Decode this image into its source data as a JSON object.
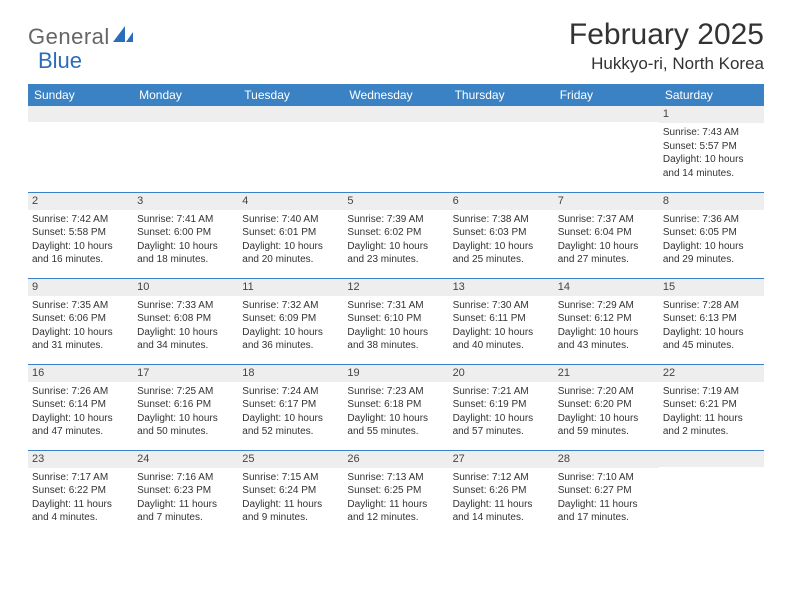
{
  "brand": {
    "text1": "General",
    "text2": "Blue"
  },
  "title": "February 2025",
  "location": "Hukkyo-ri, North Korea",
  "colors": {
    "header_bg": "#3a82c4",
    "header_fg": "#ffffff",
    "daynum_bg": "#eeeeee",
    "row_border": "#3a82c4",
    "brand_blue": "#2a6db8",
    "text": "#333333"
  },
  "fonts": {
    "title_pt": 30,
    "location_pt": 17,
    "header_pt": 12,
    "body_pt": 10
  },
  "layout": {
    "cols": 7,
    "rows": 5
  },
  "weekdays": [
    "Sunday",
    "Monday",
    "Tuesday",
    "Wednesday",
    "Thursday",
    "Friday",
    "Saturday"
  ],
  "days": [
    {
      "n": "",
      "sunrise": "",
      "sunset": "",
      "dl1": "",
      "dl2": ""
    },
    {
      "n": "",
      "sunrise": "",
      "sunset": "",
      "dl1": "",
      "dl2": ""
    },
    {
      "n": "",
      "sunrise": "",
      "sunset": "",
      "dl1": "",
      "dl2": ""
    },
    {
      "n": "",
      "sunrise": "",
      "sunset": "",
      "dl1": "",
      "dl2": ""
    },
    {
      "n": "",
      "sunrise": "",
      "sunset": "",
      "dl1": "",
      "dl2": ""
    },
    {
      "n": "",
      "sunrise": "",
      "sunset": "",
      "dl1": "",
      "dl2": ""
    },
    {
      "n": "1",
      "sunrise": "Sunrise: 7:43 AM",
      "sunset": "Sunset: 5:57 PM",
      "dl1": "Daylight: 10 hours",
      "dl2": "and 14 minutes."
    },
    {
      "n": "2",
      "sunrise": "Sunrise: 7:42 AM",
      "sunset": "Sunset: 5:58 PM",
      "dl1": "Daylight: 10 hours",
      "dl2": "and 16 minutes."
    },
    {
      "n": "3",
      "sunrise": "Sunrise: 7:41 AM",
      "sunset": "Sunset: 6:00 PM",
      "dl1": "Daylight: 10 hours",
      "dl2": "and 18 minutes."
    },
    {
      "n": "4",
      "sunrise": "Sunrise: 7:40 AM",
      "sunset": "Sunset: 6:01 PM",
      "dl1": "Daylight: 10 hours",
      "dl2": "and 20 minutes."
    },
    {
      "n": "5",
      "sunrise": "Sunrise: 7:39 AM",
      "sunset": "Sunset: 6:02 PM",
      "dl1": "Daylight: 10 hours",
      "dl2": "and 23 minutes."
    },
    {
      "n": "6",
      "sunrise": "Sunrise: 7:38 AM",
      "sunset": "Sunset: 6:03 PM",
      "dl1": "Daylight: 10 hours",
      "dl2": "and 25 minutes."
    },
    {
      "n": "7",
      "sunrise": "Sunrise: 7:37 AM",
      "sunset": "Sunset: 6:04 PM",
      "dl1": "Daylight: 10 hours",
      "dl2": "and 27 minutes."
    },
    {
      "n": "8",
      "sunrise": "Sunrise: 7:36 AM",
      "sunset": "Sunset: 6:05 PM",
      "dl1": "Daylight: 10 hours",
      "dl2": "and 29 minutes."
    },
    {
      "n": "9",
      "sunrise": "Sunrise: 7:35 AM",
      "sunset": "Sunset: 6:06 PM",
      "dl1": "Daylight: 10 hours",
      "dl2": "and 31 minutes."
    },
    {
      "n": "10",
      "sunrise": "Sunrise: 7:33 AM",
      "sunset": "Sunset: 6:08 PM",
      "dl1": "Daylight: 10 hours",
      "dl2": "and 34 minutes."
    },
    {
      "n": "11",
      "sunrise": "Sunrise: 7:32 AM",
      "sunset": "Sunset: 6:09 PM",
      "dl1": "Daylight: 10 hours",
      "dl2": "and 36 minutes."
    },
    {
      "n": "12",
      "sunrise": "Sunrise: 7:31 AM",
      "sunset": "Sunset: 6:10 PM",
      "dl1": "Daylight: 10 hours",
      "dl2": "and 38 minutes."
    },
    {
      "n": "13",
      "sunrise": "Sunrise: 7:30 AM",
      "sunset": "Sunset: 6:11 PM",
      "dl1": "Daylight: 10 hours",
      "dl2": "and 40 minutes."
    },
    {
      "n": "14",
      "sunrise": "Sunrise: 7:29 AM",
      "sunset": "Sunset: 6:12 PM",
      "dl1": "Daylight: 10 hours",
      "dl2": "and 43 minutes."
    },
    {
      "n": "15",
      "sunrise": "Sunrise: 7:28 AM",
      "sunset": "Sunset: 6:13 PM",
      "dl1": "Daylight: 10 hours",
      "dl2": "and 45 minutes."
    },
    {
      "n": "16",
      "sunrise": "Sunrise: 7:26 AM",
      "sunset": "Sunset: 6:14 PM",
      "dl1": "Daylight: 10 hours",
      "dl2": "and 47 minutes."
    },
    {
      "n": "17",
      "sunrise": "Sunrise: 7:25 AM",
      "sunset": "Sunset: 6:16 PM",
      "dl1": "Daylight: 10 hours",
      "dl2": "and 50 minutes."
    },
    {
      "n": "18",
      "sunrise": "Sunrise: 7:24 AM",
      "sunset": "Sunset: 6:17 PM",
      "dl1": "Daylight: 10 hours",
      "dl2": "and 52 minutes."
    },
    {
      "n": "19",
      "sunrise": "Sunrise: 7:23 AM",
      "sunset": "Sunset: 6:18 PM",
      "dl1": "Daylight: 10 hours",
      "dl2": "and 55 minutes."
    },
    {
      "n": "20",
      "sunrise": "Sunrise: 7:21 AM",
      "sunset": "Sunset: 6:19 PM",
      "dl1": "Daylight: 10 hours",
      "dl2": "and 57 minutes."
    },
    {
      "n": "21",
      "sunrise": "Sunrise: 7:20 AM",
      "sunset": "Sunset: 6:20 PM",
      "dl1": "Daylight: 10 hours",
      "dl2": "and 59 minutes."
    },
    {
      "n": "22",
      "sunrise": "Sunrise: 7:19 AM",
      "sunset": "Sunset: 6:21 PM",
      "dl1": "Daylight: 11 hours",
      "dl2": "and 2 minutes."
    },
    {
      "n": "23",
      "sunrise": "Sunrise: 7:17 AM",
      "sunset": "Sunset: 6:22 PM",
      "dl1": "Daylight: 11 hours",
      "dl2": "and 4 minutes."
    },
    {
      "n": "24",
      "sunrise": "Sunrise: 7:16 AM",
      "sunset": "Sunset: 6:23 PM",
      "dl1": "Daylight: 11 hours",
      "dl2": "and 7 minutes."
    },
    {
      "n": "25",
      "sunrise": "Sunrise: 7:15 AM",
      "sunset": "Sunset: 6:24 PM",
      "dl1": "Daylight: 11 hours",
      "dl2": "and 9 minutes."
    },
    {
      "n": "26",
      "sunrise": "Sunrise: 7:13 AM",
      "sunset": "Sunset: 6:25 PM",
      "dl1": "Daylight: 11 hours",
      "dl2": "and 12 minutes."
    },
    {
      "n": "27",
      "sunrise": "Sunrise: 7:12 AM",
      "sunset": "Sunset: 6:26 PM",
      "dl1": "Daylight: 11 hours",
      "dl2": "and 14 minutes."
    },
    {
      "n": "28",
      "sunrise": "Sunrise: 7:10 AM",
      "sunset": "Sunset: 6:27 PM",
      "dl1": "Daylight: 11 hours",
      "dl2": "and 17 minutes."
    },
    {
      "n": "",
      "sunrise": "",
      "sunset": "",
      "dl1": "",
      "dl2": ""
    }
  ]
}
